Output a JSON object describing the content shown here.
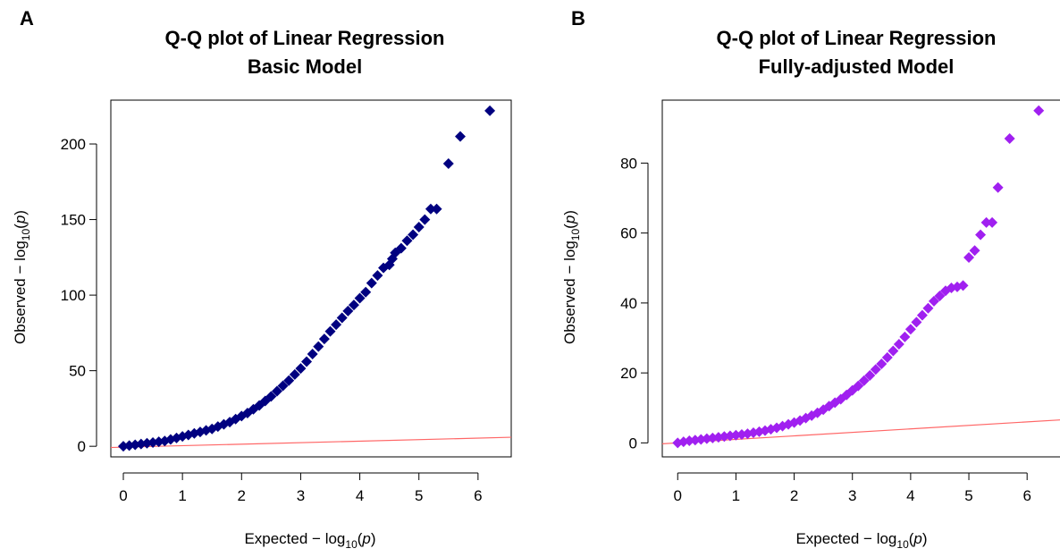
{
  "chart_data": [
    {
      "type": "scatter",
      "panel_label": "A",
      "title_lines": [
        "Q-Q plot of Linear Regression",
        "Basic Model"
      ],
      "xlabel": "Expected − log10(p)",
      "ylabel": "Observed − log10(p)",
      "xlim": [
        0,
        6.35
      ],
      "ylim": [
        -7,
        229
      ],
      "x_ticks": [
        0,
        1,
        2,
        3,
        4,
        5,
        6
      ],
      "y_ticks": [
        0,
        50,
        100,
        150,
        200
      ],
      "point_color": "#000080",
      "line_color": "#ff6666",
      "reference_line": {
        "intercept": -0.6,
        "slope": 1
      },
      "series": [
        {
          "x": [
            0.0,
            0.1,
            0.2,
            0.3,
            0.4,
            0.5,
            0.6,
            0.7,
            0.8,
            0.9,
            1.0,
            1.1,
            1.2,
            1.3,
            1.4,
            1.5,
            1.6,
            1.7,
            1.8,
            1.9,
            2.0,
            2.1,
            2.2,
            2.3,
            2.4,
            2.5,
            2.6,
            2.7,
            2.8,
            2.9,
            3.0,
            3.1,
            3.2,
            3.3,
            3.4,
            3.5,
            3.6,
            3.7,
            3.8,
            3.9,
            4.0,
            4.1,
            4.2,
            4.3,
            4.4,
            4.5,
            4.55,
            4.6,
            4.7,
            4.8,
            4.9,
            5.0,
            5.1,
            5.2,
            5.3,
            5.5,
            5.7,
            6.2
          ],
          "y": [
            0,
            0.5,
            1,
            1.5,
            2,
            2.5,
            3,
            3.5,
            4.5,
            5.5,
            6.5,
            7.5,
            8.5,
            9.5,
            10.5,
            11.5,
            13,
            14.5,
            16,
            18,
            20,
            22,
            24.5,
            27,
            30,
            33,
            36.5,
            40,
            43.5,
            47.5,
            51.5,
            56,
            61,
            66,
            71,
            76,
            80.5,
            85,
            89.5,
            93.5,
            98,
            102,
            108,
            113,
            118,
            120,
            124,
            128,
            131,
            136,
            140,
            145,
            150,
            157,
            157,
            187,
            205,
            222
          ]
        }
      ]
    },
    {
      "type": "scatter",
      "panel_label": "B",
      "title_lines": [
        "Q-Q plot of Linear Regression",
        "Fully-adjusted Model"
      ],
      "xlabel": "Expected − log10(p)",
      "ylabel": "Observed − log10(p)",
      "xlim": [
        -0.05,
        6.35
      ],
      "ylim": [
        -4,
        98
      ],
      "x_ticks": [
        0,
        1,
        2,
        3,
        4,
        5,
        6
      ],
      "y_ticks": [
        0,
        20,
        40,
        60,
        80
      ],
      "point_color": "#a020f0",
      "line_color": "#ff6666",
      "reference_line": {
        "intercept": 0,
        "slope": 1
      },
      "series": [
        {
          "x": [
            0.0,
            0.1,
            0.2,
            0.3,
            0.4,
            0.5,
            0.6,
            0.7,
            0.8,
            0.9,
            1.0,
            1.1,
            1.2,
            1.3,
            1.4,
            1.5,
            1.6,
            1.7,
            1.8,
            1.9,
            2.0,
            2.1,
            2.2,
            2.3,
            2.4,
            2.5,
            2.6,
            2.7,
            2.8,
            2.9,
            3.0,
            3.1,
            3.2,
            3.3,
            3.4,
            3.5,
            3.6,
            3.7,
            3.8,
            3.9,
            4.0,
            4.1,
            4.2,
            4.3,
            4.4,
            4.5,
            4.6,
            4.7,
            4.8,
            4.9,
            5.0,
            5.1,
            5.2,
            5.3,
            5.4,
            5.5,
            5.7,
            6.2
          ],
          "y": [
            0,
            0.3,
            0.6,
            0.8,
            1,
            1.2,
            1.4,
            1.6,
            1.8,
            2,
            2.2,
            2.4,
            2.6,
            2.9,
            3.2,
            3.5,
            3.9,
            4.3,
            4.8,
            5.3,
            5.8,
            6.4,
            7.1,
            7.8,
            8.6,
            9.5,
            10.5,
            11.5,
            12.5,
            13.7,
            15,
            16.3,
            17.8,
            19.3,
            21,
            22.6,
            24.4,
            26.3,
            28.2,
            30.3,
            32.5,
            34.5,
            36.5,
            38.5,
            40.5,
            42,
            43.5,
            44.3,
            44.6,
            45,
            53,
            55,
            59.5,
            63,
            63,
            73,
            87,
            95
          ]
        }
      ]
    }
  ]
}
